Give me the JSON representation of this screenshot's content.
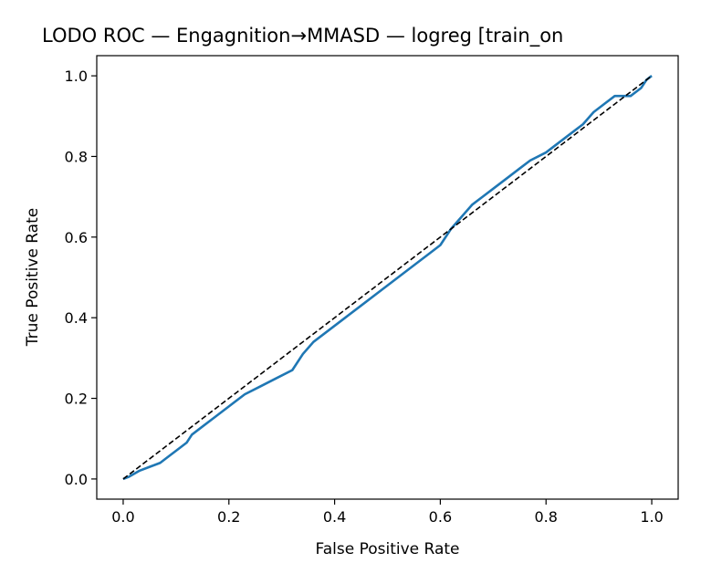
{
  "chart_data": {
    "type": "line",
    "title": "LODO ROC — Engagnition→MMASD — logreg [train_on",
    "xlabel": "False Positive Rate",
    "ylabel": "True Positive Rate",
    "xlim": [
      -0.05,
      1.05
    ],
    "ylim": [
      -0.05,
      1.05
    ],
    "xticks": [
      0.0,
      0.2,
      0.4,
      0.6,
      0.8,
      1.0
    ],
    "xtick_labels": [
      "0.0",
      "0.2",
      "0.4",
      "0.6",
      "0.8",
      "1.0"
    ],
    "yticks": [
      0.0,
      0.2,
      0.4,
      0.6,
      0.8,
      1.0
    ],
    "ytick_labels": [
      "0.0",
      "0.2",
      "0.4",
      "0.6",
      "0.8",
      "1.0"
    ],
    "grid": false,
    "legend": "none",
    "series": [
      {
        "style": "solid",
        "color": "#1f77b4",
        "x": [
          0.0,
          0.01,
          0.03,
          0.05,
          0.07,
          0.09,
          0.1,
          0.12,
          0.13,
          0.15,
          0.17,
          0.2,
          0.23,
          0.26,
          0.29,
          0.32,
          0.34,
          0.36,
          0.39,
          0.42,
          0.45,
          0.49,
          0.52,
          0.55,
          0.58,
          0.6,
          0.62,
          0.64,
          0.66,
          0.68,
          0.7,
          0.73,
          0.75,
          0.77,
          0.8,
          0.82,
          0.85,
          0.87,
          0.89,
          0.91,
          0.93,
          0.96,
          0.98,
          0.99,
          1.0
        ],
        "y": [
          0.0,
          0.005,
          0.02,
          0.03,
          0.04,
          0.06,
          0.07,
          0.09,
          0.11,
          0.13,
          0.15,
          0.18,
          0.21,
          0.23,
          0.25,
          0.27,
          0.31,
          0.34,
          0.37,
          0.4,
          0.43,
          0.47,
          0.5,
          0.53,
          0.56,
          0.58,
          0.62,
          0.65,
          0.68,
          0.7,
          0.72,
          0.75,
          0.77,
          0.79,
          0.81,
          0.83,
          0.86,
          0.88,
          0.91,
          0.93,
          0.95,
          0.95,
          0.97,
          0.99,
          1.0
        ]
      },
      {
        "style": "dashed",
        "color": "#000000",
        "x": [
          0.0,
          1.0
        ],
        "y": [
          0.0,
          1.0
        ]
      }
    ]
  }
}
